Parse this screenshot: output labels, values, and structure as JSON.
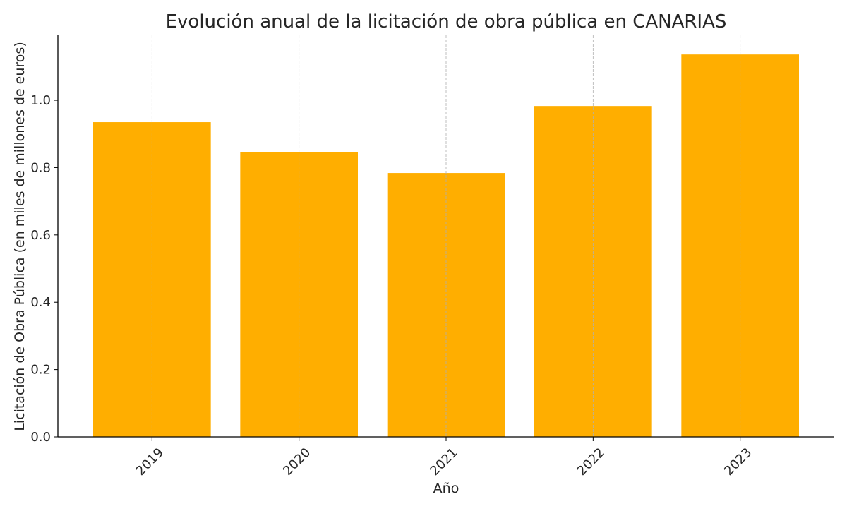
{
  "chart_data": {
    "type": "bar",
    "title": "Evolución anual de la licitación de obra pública en CANARIAS",
    "xlabel": "Año",
    "ylabel": "Licitación de Obra Pública (en miles de millones de euros)",
    "categories": [
      "2019",
      "2020",
      "2021",
      "2022",
      "2023"
    ],
    "values": [
      0.935,
      0.845,
      0.784,
      0.983,
      1.136
    ],
    "ylim": [
      0,
      1.193
    ],
    "yticks": [
      "0.0",
      "0.2",
      "0.4",
      "0.6",
      "0.8",
      "1.0"
    ],
    "grid": "x-dashed",
    "bar_color": "#FFAE00"
  }
}
